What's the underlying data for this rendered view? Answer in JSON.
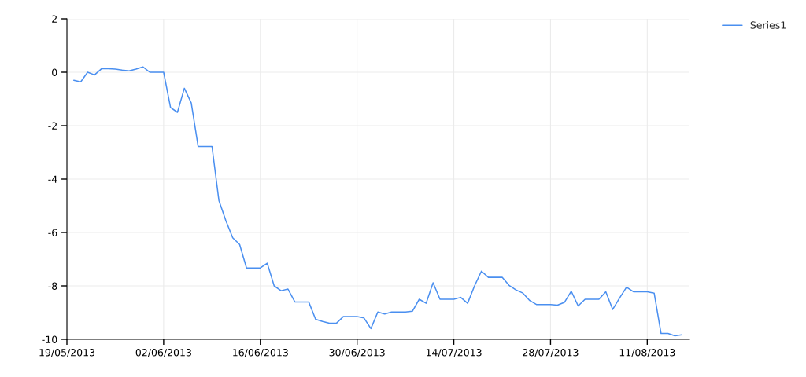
{
  "chart_data": {
    "type": "line",
    "x": [
      "2013-05-20",
      "2013-05-21",
      "2013-05-22",
      "2013-05-23",
      "2013-05-24",
      "2013-05-25",
      "2013-05-26",
      "2013-05-27",
      "2013-05-28",
      "2013-05-29",
      "2013-05-30",
      "2013-05-31",
      "2013-06-01",
      "2013-06-02",
      "2013-06-03",
      "2013-06-04",
      "2013-06-05",
      "2013-06-06",
      "2013-06-07",
      "2013-06-08",
      "2013-06-09",
      "2013-06-10",
      "2013-06-11",
      "2013-06-12",
      "2013-06-13",
      "2013-06-14",
      "2013-06-15",
      "2013-06-16",
      "2013-06-17",
      "2013-06-18",
      "2013-06-19",
      "2013-06-20",
      "2013-06-21",
      "2013-06-22",
      "2013-06-23",
      "2013-06-24",
      "2013-06-25",
      "2013-06-26",
      "2013-06-27",
      "2013-06-28",
      "2013-06-29",
      "2013-06-30",
      "2013-07-01",
      "2013-07-02",
      "2013-07-03",
      "2013-07-04",
      "2013-07-05",
      "2013-07-06",
      "2013-07-07",
      "2013-07-08",
      "2013-07-09",
      "2013-07-10",
      "2013-07-11",
      "2013-07-12",
      "2013-07-13",
      "2013-07-14",
      "2013-07-15",
      "2013-07-16",
      "2013-07-17",
      "2013-07-18",
      "2013-07-19",
      "2013-07-20",
      "2013-07-21",
      "2013-07-22",
      "2013-07-23",
      "2013-07-24",
      "2013-07-25",
      "2013-07-26",
      "2013-07-27",
      "2013-07-28",
      "2013-07-29",
      "2013-07-30",
      "2013-07-31",
      "2013-08-01",
      "2013-08-02",
      "2013-08-03",
      "2013-08-04",
      "2013-08-05",
      "2013-08-06",
      "2013-08-07",
      "2013-08-08",
      "2013-08-09",
      "2013-08-10",
      "2013-08-11",
      "2013-08-12",
      "2013-08-13",
      "2013-08-14",
      "2013-08-15",
      "2013-08-16"
    ],
    "series": [
      {
        "name": "Series1",
        "color": "#4a8ff0",
        "values": [
          -0.3,
          -0.36,
          0.0,
          -0.1,
          0.13,
          0.13,
          0.12,
          0.08,
          0.05,
          0.12,
          0.2,
          0.0,
          0.0,
          0.0,
          -1.32,
          -1.5,
          -0.6,
          -1.15,
          -2.78,
          -2.78,
          -2.78,
          -4.8,
          -5.55,
          -6.2,
          -6.45,
          -7.33,
          -7.33,
          -7.33,
          -7.15,
          -8.0,
          -8.18,
          -8.12,
          -8.6,
          -8.6,
          -8.6,
          -9.25,
          -9.33,
          -9.4,
          -9.4,
          -9.15,
          -9.15,
          -9.15,
          -9.2,
          -9.6,
          -8.98,
          -9.05,
          -8.98,
          -8.98,
          -8.98,
          -8.95,
          -8.5,
          -8.65,
          -7.88,
          -8.5,
          -8.5,
          -8.5,
          -8.43,
          -8.65,
          -8.0,
          -7.45,
          -7.68,
          -7.68,
          -7.68,
          -7.98,
          -8.15,
          -8.27,
          -8.55,
          -8.7,
          -8.7,
          -8.7,
          -8.72,
          -8.62,
          -8.2,
          -8.75,
          -8.5,
          -8.5,
          -8.5,
          -8.22,
          -8.88,
          -8.45,
          -8.05,
          -8.22,
          -8.22,
          -8.22,
          -8.27,
          -9.78,
          -9.78,
          -9.87,
          -9.83
        ]
      }
    ],
    "xlim": [
      "2013-05-19",
      "2013-08-17"
    ],
    "xticks": [
      {
        "value": "2013-05-19",
        "label": "19/05/2013"
      },
      {
        "value": "2013-06-02",
        "label": "02/06/2013"
      },
      {
        "value": "2013-06-16",
        "label": "16/06/2013"
      },
      {
        "value": "2013-06-30",
        "label": "30/06/2013"
      },
      {
        "value": "2013-07-14",
        "label": "14/07/2013"
      },
      {
        "value": "2013-07-28",
        "label": "28/07/2013"
      },
      {
        "value": "2013-08-11",
        "label": "11/08/2013"
      }
    ],
    "ylim": [
      -10,
      2
    ],
    "yticks": [
      -10,
      -8,
      -6,
      -4,
      -2,
      0,
      2
    ],
    "grid": true,
    "legend": "top right",
    "marker": "none",
    "line_style": "solid"
  }
}
